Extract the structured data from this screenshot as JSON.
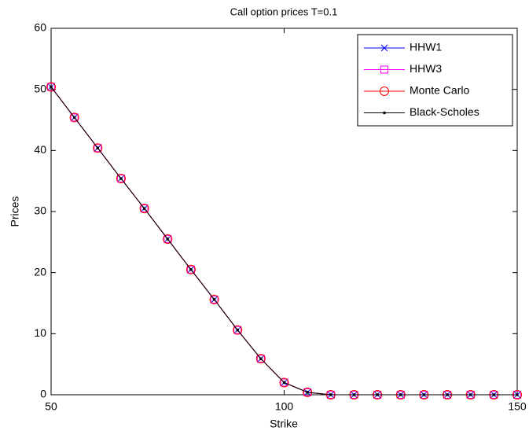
{
  "chart_data": {
    "type": "line",
    "title": "Call option prices T=0.1",
    "x_label": "Strike",
    "y_label": "Prices",
    "x": [
      50,
      55,
      60,
      65,
      70,
      75,
      80,
      85,
      90,
      95,
      100,
      105,
      110,
      115,
      120,
      125,
      130,
      135,
      140,
      145,
      150
    ],
    "series": [
      {
        "name": "HHW1",
        "color": "#0000ff",
        "marker": "x",
        "values": [
          50.4,
          45.4,
          40.4,
          35.4,
          30.5,
          25.5,
          20.5,
          15.6,
          10.6,
          5.9,
          2.0,
          0.4,
          0,
          0,
          0,
          0,
          0,
          0,
          0,
          0,
          0
        ]
      },
      {
        "name": "HHW3",
        "color": "#ff00ff",
        "marker": "square",
        "values": [
          50.4,
          45.4,
          40.4,
          35.4,
          30.5,
          25.5,
          20.5,
          15.6,
          10.6,
          5.9,
          2.0,
          0.4,
          0,
          0,
          0,
          0,
          0,
          0,
          0,
          0,
          0
        ]
      },
      {
        "name": "Monte Carlo",
        "color": "#ff0000",
        "marker": "circle",
        "values": [
          50.4,
          45.4,
          40.4,
          35.4,
          30.5,
          25.5,
          20.5,
          15.6,
          10.6,
          5.9,
          2.0,
          0.4,
          0,
          0,
          0,
          0,
          0,
          0,
          0,
          0,
          0
        ]
      },
      {
        "name": "Black-Scholes",
        "color": "#000000",
        "marker": "dot",
        "values": [
          50.4,
          45.4,
          40.4,
          35.4,
          30.5,
          25.5,
          20.5,
          15.6,
          10.6,
          5.9,
          2.0,
          0.4,
          0,
          0,
          0,
          0,
          0,
          0,
          0,
          0,
          0
        ]
      }
    ],
    "xlim": [
      50,
      150
    ],
    "xticks": [
      50,
      100,
      150
    ],
    "ylim": [
      0,
      60
    ],
    "yticks": [
      0,
      10,
      20,
      30,
      40,
      50,
      60
    ],
    "grid": false,
    "legend": "top-right"
  }
}
